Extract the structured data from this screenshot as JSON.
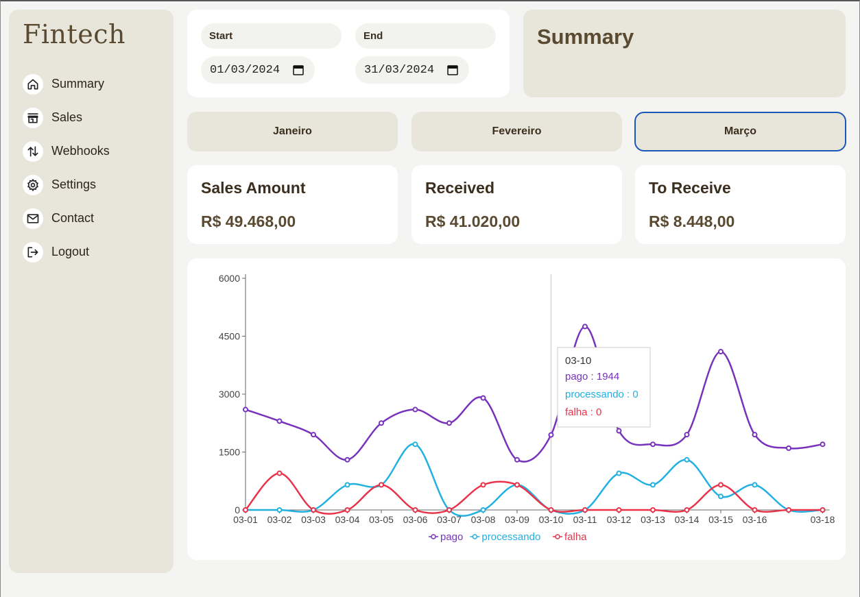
{
  "app": {
    "logo": "Fintech"
  },
  "sidebar": {
    "items": [
      {
        "label": "Summary",
        "icon": "home-icon"
      },
      {
        "label": "Sales",
        "icon": "store-icon"
      },
      {
        "label": "Webhooks",
        "icon": "arrows-updown-icon"
      },
      {
        "label": "Settings",
        "icon": "gear-icon"
      },
      {
        "label": "Contact",
        "icon": "mail-icon"
      },
      {
        "label": "Logout",
        "icon": "logout-icon"
      }
    ]
  },
  "filters": {
    "start_label": "Start",
    "start_value": "01/03/2024",
    "end_label": "End",
    "end_value": "31/03/2024"
  },
  "page": {
    "title": "Summary"
  },
  "months": [
    {
      "label": "Janeiro",
      "active": false
    },
    {
      "label": "Fevereiro",
      "active": false
    },
    {
      "label": "Março",
      "active": true
    }
  ],
  "stats": [
    {
      "label": "Sales Amount",
      "value": "R$ 49.468,00"
    },
    {
      "label": "Received",
      "value": "R$ 41.020,00"
    },
    {
      "label": "To Receive",
      "value": "R$ 8.448,00"
    }
  ],
  "colors": {
    "pago": "#7733bb",
    "processando": "#22b0e0",
    "falha": "#e8334a",
    "accent": "#1c57b6"
  },
  "chart_data": {
    "type": "line",
    "x": [
      "03-01",
      "03-02",
      "03-03",
      "03-04",
      "03-05",
      "03-06",
      "03-07",
      "03-08",
      "03-09",
      "03-10",
      "03-11",
      "03-12",
      "03-13",
      "03-14",
      "03-15",
      "03-16",
      "03-17",
      "03-18"
    ],
    "x_tick_labels": [
      "03-01",
      "03-02",
      "03-03",
      "03-04",
      "03-05",
      "03-06",
      "03-07",
      "03-08",
      "03-09",
      "03-10",
      "03-11",
      "03-12",
      "03-13",
      "03-14",
      "03-15",
      "03-16",
      "",
      "03-18"
    ],
    "y_ticks": [
      0,
      1500,
      3000,
      4500,
      6000
    ],
    "ylim": [
      0,
      6000
    ],
    "series": [
      {
        "name": "pago",
        "values": [
          2600,
          2300,
          1950,
          1300,
          2250,
          2600,
          2250,
          2900,
          1300,
          1944,
          4750,
          2050,
          1700,
          1950,
          4100,
          1950,
          1600,
          1700
        ]
      },
      {
        "name": "processando",
        "values": [
          0,
          0,
          0,
          650,
          650,
          1700,
          0,
          0,
          650,
          0,
          0,
          950,
          650,
          1300,
          350,
          650,
          0,
          0
        ]
      },
      {
        "name": "falha",
        "values": [
          0,
          950,
          0,
          0,
          650,
          0,
          0,
          650,
          650,
          0,
          0,
          0,
          0,
          0,
          650,
          0,
          0,
          0
        ]
      }
    ],
    "legend": "bottom",
    "tooltip": {
      "title": "03-10",
      "lines": [
        "pago : 1944",
        "processando : 0",
        "falha : 0"
      ]
    }
  }
}
